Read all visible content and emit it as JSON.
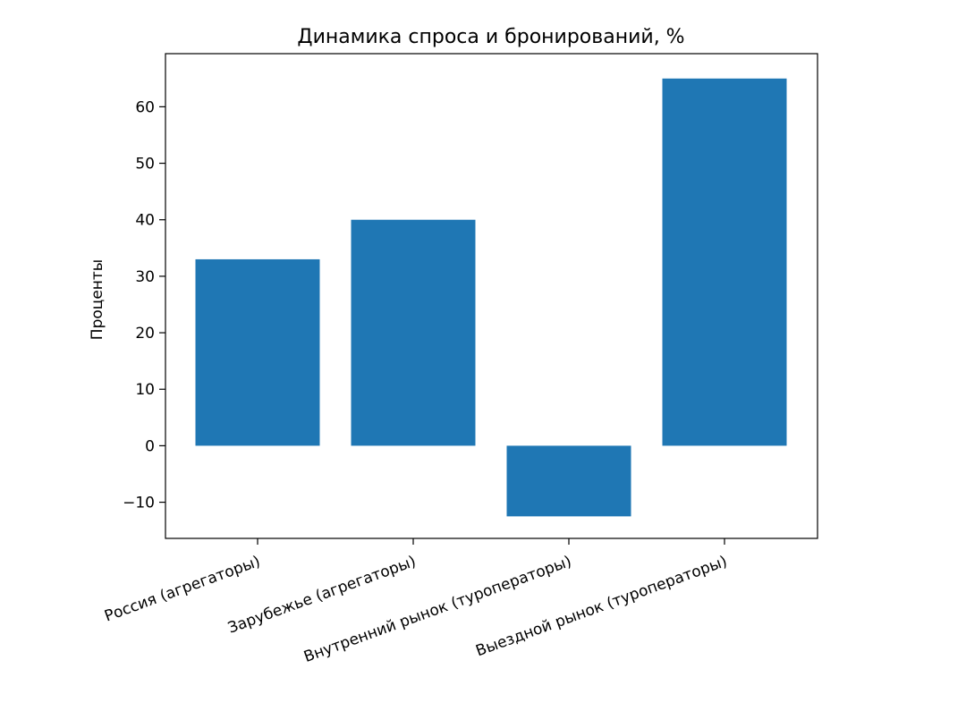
{
  "chart_data": {
    "type": "bar",
    "title": "Динамика спроса и бронирований, %",
    "xlabel": "",
    "ylabel": "Проценты",
    "categories": [
      "Россия (агрегаторы)",
      "Зарубежье (агрегаторы)",
      "Внутренний рынок (туроператоры)",
      "Выездной рынок (туроператоры)"
    ],
    "values": [
      33,
      40,
      -12.5,
      65
    ],
    "ylim": [
      -16.4,
      69.4
    ],
    "yticks": [
      -10,
      0,
      10,
      20,
      30,
      40,
      50,
      60
    ],
    "ytick_labels": [
      "−10",
      "0",
      "10",
      "20",
      "30",
      "40",
      "50",
      "60"
    ],
    "bar_color": "#1f77b4",
    "grid": false,
    "xtick_rotation": "rotated"
  }
}
